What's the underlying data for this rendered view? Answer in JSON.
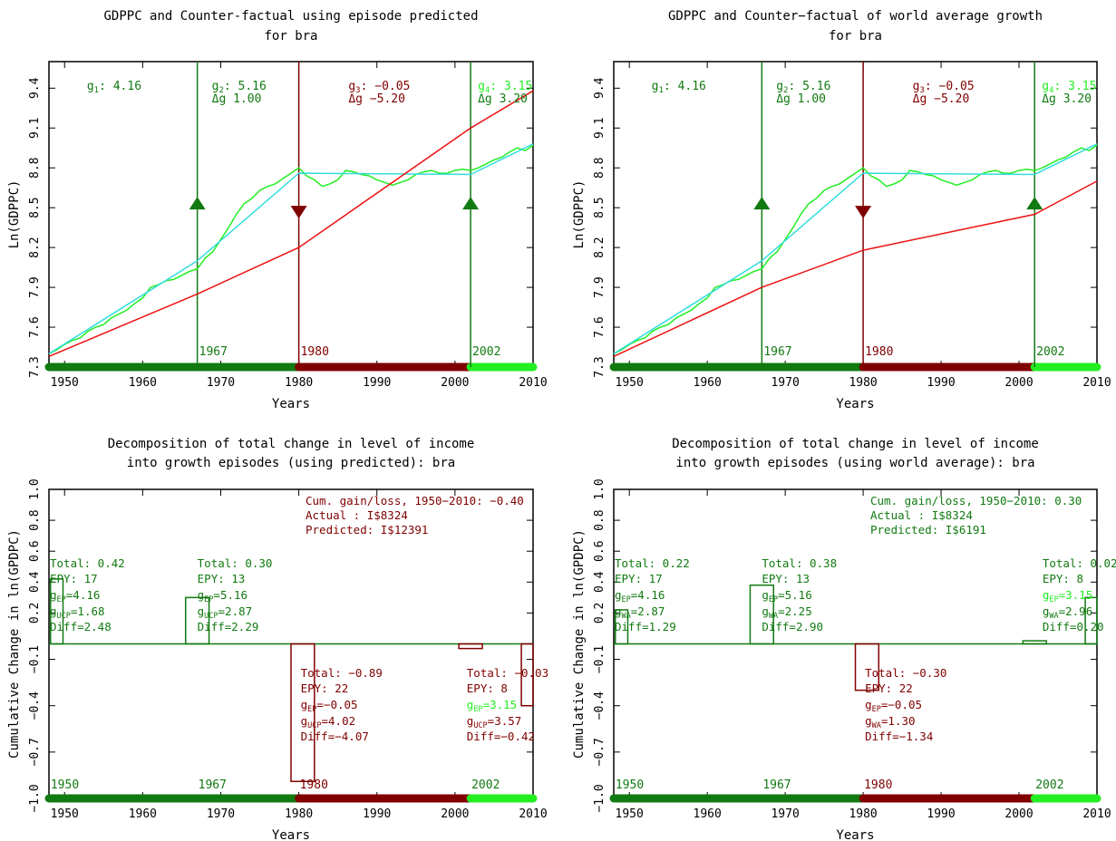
{
  "colors": {
    "dark_green": "#117a11",
    "dark_red": "#800000",
    "bright_green": "#22ee22",
    "cyan": "#33dddd",
    "red": "#ee1111",
    "black": "#000000"
  },
  "chart_data": [
    {
      "type": "line",
      "title": "GDPPC and Counter-factual using episode predicted",
      "title2": "for bra",
      "xlabel": "Years",
      "ylabel": "Ln(GDPPC)",
      "xlim": [
        1948,
        2010
      ],
      "ylim": [
        7.3,
        9.6
      ],
      "xticks": [
        1950,
        1960,
        1970,
        1980,
        1990,
        2000,
        2010
      ],
      "yticks": [
        7.3,
        7.6,
        7.9,
        8.2,
        8.5,
        8.8,
        9.1,
        9.4
      ],
      "series": [
        {
          "color": "#22ee22",
          "x": [
            1948,
            1949,
            1950,
            1951,
            1952,
            1953,
            1954,
            1955,
            1956,
            1957,
            1958,
            1959,
            1960,
            1961,
            1962,
            1963,
            1964,
            1965,
            1966,
            1967,
            1968,
            1969,
            1970,
            1971,
            1972,
            1973,
            1974,
            1975,
            1976,
            1977,
            1978,
            1979,
            1980,
            1981,
            1982,
            1983,
            1984,
            1985,
            1986,
            1987,
            1988,
            1989,
            1990,
            1991,
            1992,
            1993,
            1994,
            1995,
            1996,
            1997,
            1998,
            1999,
            2000,
            2001,
            2002,
            2003,
            2004,
            2005,
            2006,
            2007,
            2008,
            2009,
            2010
          ],
          "y": [
            7.4,
            7.43,
            7.47,
            7.5,
            7.52,
            7.57,
            7.6,
            7.62,
            7.67,
            7.7,
            7.73,
            7.78,
            7.82,
            7.9,
            7.92,
            7.95,
            7.96,
            7.99,
            8.02,
            8.04,
            8.12,
            8.17,
            8.26,
            8.35,
            8.45,
            8.53,
            8.57,
            8.63,
            8.66,
            8.68,
            8.72,
            8.76,
            8.8,
            8.74,
            8.71,
            8.66,
            8.68,
            8.71,
            8.78,
            8.77,
            8.75,
            8.74,
            8.71,
            8.69,
            8.67,
            8.69,
            8.71,
            8.75,
            8.77,
            8.78,
            8.76,
            8.76,
            8.78,
            8.79,
            8.78,
            8.8,
            8.83,
            8.86,
            8.88,
            8.92,
            8.95,
            8.93,
            8.97
          ]
        },
        {
          "color": "#33dddd",
          "x": [
            1948,
            1967,
            1980,
            2002,
            2010
          ],
          "y": [
            7.4,
            8.1,
            8.76,
            8.75,
            8.98
          ]
        },
        {
          "color": "#ee1111",
          "x": [
            1948,
            1967,
            1980,
            2002,
            2010
          ],
          "y": [
            7.38,
            7.85,
            8.2,
            9.1,
            9.38
          ]
        }
      ],
      "episode_breaks": [
        {
          "year": 1967,
          "label": "1967",
          "color": "#117a11",
          "arrow": "up"
        },
        {
          "year": 1980,
          "label": "1980",
          "color": "#800000",
          "arrow": "down"
        },
        {
          "year": 2002,
          "label": "2002",
          "color": "#117a11",
          "arrow": "up"
        }
      ],
      "bands": [
        {
          "from": 1948,
          "to": 1980,
          "color": "#117a11"
        },
        {
          "from": 1980,
          "to": 2002,
          "color": "#800000"
        },
        {
          "from": 2002,
          "to": 2010,
          "color": "#22ee22"
        }
      ],
      "episode_labels": [
        {
          "g": "g",
          "sub": "1",
          "value": ": 4.16",
          "dg": "",
          "color": "#117a11"
        },
        {
          "g": "g",
          "sub": "2",
          "value": ": 5.16",
          "dg": "Δg 1.00",
          "color": "#117a11"
        },
        {
          "g": "g",
          "sub": "3",
          "value": ": −0.05",
          "dg": "Δg −5.20",
          "color": "#800000"
        },
        {
          "g": "g",
          "sub": "4",
          "value": ": 3.15",
          "dg": "Δg 3.20",
          "color": "#22ee22",
          "dg_color": "#117a11"
        }
      ]
    },
    {
      "type": "line",
      "title": "GDPPC and Counter−factual of world average growth",
      "title2": "for bra",
      "xlabel": "Years",
      "ylabel": "Ln(GDPPC)",
      "xlim": [
        1948,
        2010
      ],
      "ylim": [
        7.3,
        9.6
      ],
      "xticks": [
        1950,
        1960,
        1970,
        1980,
        1990,
        2000,
        2010
      ],
      "yticks": [
        7.3,
        7.6,
        7.9,
        8.2,
        8.5,
        8.8,
        9.1,
        9.4
      ],
      "series": [
        {
          "color": "#22ee22",
          "x": [
            1948,
            1949,
            1950,
            1951,
            1952,
            1953,
            1954,
            1955,
            1956,
            1957,
            1958,
            1959,
            1960,
            1961,
            1962,
            1963,
            1964,
            1965,
            1966,
            1967,
            1968,
            1969,
            1970,
            1971,
            1972,
            1973,
            1974,
            1975,
            1976,
            1977,
            1978,
            1979,
            1980,
            1981,
            1982,
            1983,
            1984,
            1985,
            1986,
            1987,
            1988,
            1989,
            1990,
            1991,
            1992,
            1993,
            1994,
            1995,
            1996,
            1997,
            1998,
            1999,
            2000,
            2001,
            2002,
            2003,
            2004,
            2005,
            2006,
            2007,
            2008,
            2009,
            2010
          ],
          "y": [
            7.4,
            7.43,
            7.47,
            7.5,
            7.52,
            7.57,
            7.6,
            7.62,
            7.67,
            7.7,
            7.73,
            7.78,
            7.82,
            7.9,
            7.92,
            7.95,
            7.96,
            7.99,
            8.02,
            8.04,
            8.12,
            8.17,
            8.26,
            8.35,
            8.45,
            8.53,
            8.57,
            8.63,
            8.66,
            8.68,
            8.72,
            8.76,
            8.8,
            8.74,
            8.71,
            8.66,
            8.68,
            8.71,
            8.78,
            8.77,
            8.75,
            8.74,
            8.71,
            8.69,
            8.67,
            8.69,
            8.71,
            8.75,
            8.77,
            8.78,
            8.76,
            8.76,
            8.78,
            8.79,
            8.78,
            8.8,
            8.83,
            8.86,
            8.88,
            8.92,
            8.95,
            8.93,
            8.97
          ]
        },
        {
          "color": "#33dddd",
          "x": [
            1948,
            1967,
            1980,
            2002,
            2010
          ],
          "y": [
            7.4,
            8.1,
            8.76,
            8.75,
            8.98
          ]
        },
        {
          "color": "#ee1111",
          "x": [
            1948,
            1967,
            1980,
            2002,
            2010
          ],
          "y": [
            7.38,
            7.9,
            8.18,
            8.45,
            8.7
          ]
        }
      ],
      "episode_breaks": [
        {
          "year": 1967,
          "label": "1967",
          "color": "#117a11",
          "arrow": "up"
        },
        {
          "year": 1980,
          "label": "1980",
          "color": "#800000",
          "arrow": "down"
        },
        {
          "year": 2002,
          "label": "2002",
          "color": "#117a11",
          "arrow": "up"
        }
      ],
      "bands": [
        {
          "from": 1948,
          "to": 1980,
          "color": "#117a11"
        },
        {
          "from": 1980,
          "to": 2002,
          "color": "#800000"
        },
        {
          "from": 2002,
          "to": 2010,
          "color": "#22ee22"
        }
      ],
      "episode_labels": [
        {
          "g": "g",
          "sub": "1",
          "value": ": 4.16",
          "dg": "",
          "color": "#117a11"
        },
        {
          "g": "g",
          "sub": "2",
          "value": ": 5.16",
          "dg": "Δg 1.00",
          "color": "#117a11"
        },
        {
          "g": "g",
          "sub": "3",
          "value": ": −0.05",
          "dg": "Δg −5.20",
          "color": "#800000"
        },
        {
          "g": "g",
          "sub": "4",
          "value": ": 3.15",
          "dg": "Δg 3.20",
          "color": "#22ee22",
          "dg_color": "#117a11"
        }
      ]
    },
    {
      "type": "bar",
      "title": "Decomposition of total change in level of income",
      "title2": "into growth episodes (using predicted): bra",
      "xlabel": "Years",
      "ylabel": "Cumulative Change in ln(GPDPC)",
      "xlim": [
        1948,
        2010
      ],
      "ylim": [
        -1.0,
        1.0
      ],
      "xticks": [
        1950,
        1960,
        1970,
        1980,
        1990,
        2000,
        2010
      ],
      "yticks": [
        -1.0,
        -0.7,
        -0.4,
        -0.1,
        0.2,
        0.4,
        0.6,
        0.8,
        1.0
      ],
      "bars": [
        {
          "x0": 1948.2,
          "x1": 1949.8,
          "value": 0.42,
          "color": "#117a11"
        },
        {
          "x0": 1965.5,
          "x1": 1968.5,
          "value": 0.3,
          "color": "#117a11"
        },
        {
          "x0": 1979.0,
          "x1": 1982.0,
          "value": -0.89,
          "color": "#800000"
        },
        {
          "x0": 2000.5,
          "x1": 2003.5,
          "value": -0.03,
          "color": "#800000"
        },
        {
          "x0": 2008.5,
          "x1": 2010.0,
          "value": -0.4,
          "color": "#800000"
        }
      ],
      "bar_labels": [
        "1950",
        "1967",
        "1980",
        "2002"
      ],
      "bar_label_colors": [
        "#117a11",
        "#117a11",
        "#800000",
        "#117a11"
      ],
      "bands": [
        {
          "from": 1948,
          "to": 1980,
          "color": "#117a11"
        },
        {
          "from": 1980,
          "to": 2002,
          "color": "#800000"
        },
        {
          "from": 2002,
          "to": 2010,
          "color": "#22ee22"
        }
      ],
      "summary": {
        "color": "#800000",
        "lines": [
          "Cum. gain/loss, 1950−2010: −0.40",
          "Actual    : I$8324",
          "Predicted: I$12391"
        ]
      },
      "episodes": [
        {
          "color": "#117a11",
          "total": "Total: 0.42",
          "epy": "EPY: 17",
          "gep": "=4.16",
          "gep_color": "#117a11",
          "cf_sub": "UCP",
          "cf": "=1.68",
          "diff": "Diff=2.48"
        },
        {
          "color": "#117a11",
          "total": "Total: 0.30",
          "epy": "EPY: 13",
          "gep": "=5.16",
          "gep_color": "#117a11",
          "cf_sub": "UCP",
          "cf": "=2.87",
          "diff": "Diff=2.29"
        },
        {
          "color": "#800000",
          "total": "Total: −0.89",
          "epy": "EPY: 22",
          "gep": "=−0.05",
          "gep_color": "#800000",
          "cf_sub": "UCP",
          "cf": "=4.02",
          "diff": "Diff=−4.07"
        },
        {
          "color": "#800000",
          "total": "Total: −0.03",
          "epy": "EPY: 8",
          "gep": "=3.15",
          "gep_color": "#22ee22",
          "cf_sub": "UCP",
          "cf": "=3.57",
          "diff": "Diff=−0.42"
        }
      ]
    },
    {
      "type": "bar",
      "title": "Decomposition of total change in level of income",
      "title2": "into growth episodes (using world average): bra",
      "xlabel": "Years",
      "ylabel": "Cumulative Change in ln(GPDPC)",
      "xlim": [
        1948,
        2010
      ],
      "ylim": [
        -1.0,
        1.0
      ],
      "xticks": [
        1950,
        1960,
        1970,
        1980,
        1990,
        2000,
        2010
      ],
      "yticks": [
        -1.0,
        -0.7,
        -0.4,
        -0.1,
        0.2,
        0.4,
        0.6,
        0.8,
        1.0
      ],
      "bars": [
        {
          "x0": 1948.2,
          "x1": 1949.8,
          "value": 0.22,
          "color": "#117a11"
        },
        {
          "x0": 1965.5,
          "x1": 1968.5,
          "value": 0.38,
          "color": "#117a11"
        },
        {
          "x0": 1979.0,
          "x1": 1982.0,
          "value": -0.3,
          "color": "#800000"
        },
        {
          "x0": 2000.5,
          "x1": 2003.5,
          "value": 0.02,
          "color": "#117a11"
        },
        {
          "x0": 2008.5,
          "x1": 2010.0,
          "value": 0.3,
          "color": "#117a11"
        }
      ],
      "bar_labels": [
        "1950",
        "1967",
        "1980",
        "2002"
      ],
      "bar_label_colors": [
        "#117a11",
        "#117a11",
        "#800000",
        "#117a11"
      ],
      "bands": [
        {
          "from": 1948,
          "to": 1980,
          "color": "#117a11"
        },
        {
          "from": 1980,
          "to": 2002,
          "color": "#800000"
        },
        {
          "from": 2002,
          "to": 2010,
          "color": "#22ee22"
        }
      ],
      "summary": {
        "color": "#117a11",
        "lines": [
          "Cum. gain/loss, 1950−2010: 0.30",
          "Actual    : I$8324",
          "Predicted: I$6191"
        ]
      },
      "episodes": [
        {
          "color": "#117a11",
          "total": "Total: 0.22",
          "epy": "EPY: 17",
          "gep": "=4.16",
          "gep_color": "#117a11",
          "cf_sub": "WA",
          "cf": "=2.87",
          "diff": "Diff=1.29"
        },
        {
          "color": "#117a11",
          "total": "Total: 0.38",
          "epy": "EPY: 13",
          "gep": "=5.16",
          "gep_color": "#117a11",
          "cf_sub": "WA",
          "cf": "=2.25",
          "diff": "Diff=2.90"
        },
        {
          "color": "#800000",
          "total": "Total: −0.30",
          "epy": "EPY: 22",
          "gep": "=−0.05",
          "gep_color": "#800000",
          "cf_sub": "WA",
          "cf": "=1.30",
          "diff": "Diff=−1.34"
        },
        {
          "color": "#117a11",
          "total": "Total: 0.02",
          "epy": "EPY: 8",
          "gep": "=3.15",
          "gep_color": "#22ee22",
          "cf_sub": "WA",
          "cf": "=2.96",
          "diff": "Diff=0.20"
        }
      ]
    }
  ]
}
